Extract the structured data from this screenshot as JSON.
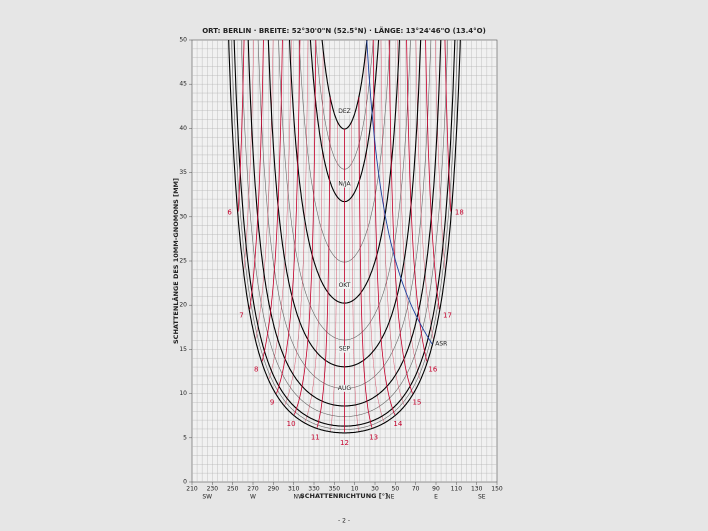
{
  "title": "ORT: BERLIN · BREITE: 52°30'0\"N (52.5°N) · LÄNGE: 13°24'46\"O (13.4°O)",
  "chart_data": {
    "type": "sundial",
    "latitude": 52.5,
    "xlabel": "SCHATTENRICHTUNG [°]",
    "ylabel": "SCHATTENLÄNGE DES 10MM-GNOMONS [MM]",
    "xlim": [
      210,
      510
    ],
    "xticks": [
      210,
      230,
      250,
      270,
      290,
      310,
      330,
      350,
      {
        "value": 370,
        "label": "10"
      },
      {
        "value": 390,
        "label": "30"
      },
      {
        "value": 410,
        "label": "50"
      },
      {
        "value": 430,
        "label": "70"
      },
      {
        "value": 450,
        "label": "90"
      },
      {
        "value": 470,
        "label": "110"
      },
      {
        "value": 490,
        "label": "130"
      },
      {
        "value": 510,
        "label": "150"
      }
    ],
    "compass": [
      {
        "value": 225,
        "label": "SW"
      },
      {
        "value": 270,
        "label": "W"
      },
      {
        "value": 315,
        "label": "NW"
      },
      {
        "value": 405,
        "label": "NE"
      },
      {
        "value": 450,
        "label": "E"
      },
      {
        "value": 495,
        "label": "SE"
      }
    ],
    "ylim": [
      0,
      50
    ],
    "yticks": [
      0,
      5,
      10,
      15,
      20,
      25,
      30,
      35,
      40,
      45,
      50
    ],
    "hours": [
      6,
      7,
      8,
      9,
      10,
      11,
      12,
      13,
      14,
      15,
      16,
      17,
      18
    ],
    "months": [
      "DEZ",
      "N/JA",
      "OKT",
      "SEP",
      "AUG"
    ],
    "asr_label": "ASR",
    "grid": true
  },
  "footer": "- 2 -"
}
